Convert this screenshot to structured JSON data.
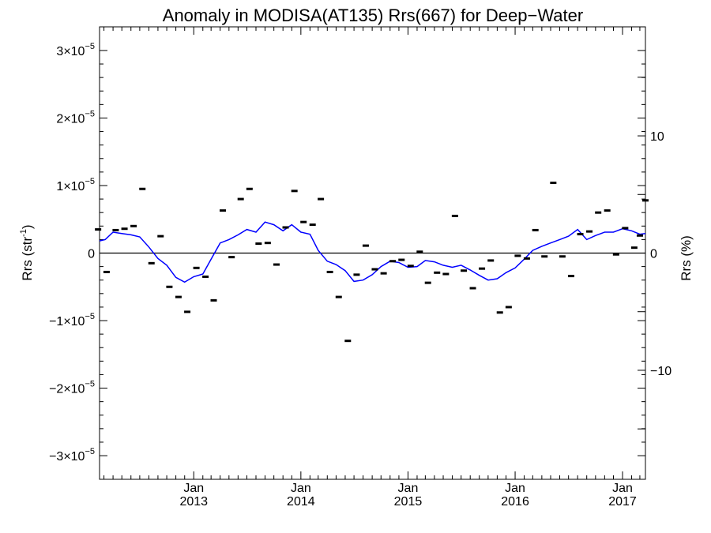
{
  "chart_data": {
    "type": "scatter",
    "title": "Anomaly in MODISA(AT135) Rrs(667) for Deep−Water",
    "ylabel_left": {
      "base": "Rrs (str",
      "sup": "-1",
      "close": ")"
    },
    "ylabel_right": "Rrs (%)",
    "x_range": [
      "2012-02-15",
      "2017-03-20"
    ],
    "y_range_left": [
      -3.35e-05,
      3.35e-05
    ],
    "y_range_right": [
      -19.3,
      19.3
    ],
    "left_ticks": [
      {
        "value": 3e-05,
        "mant": "3",
        "times": "×10",
        "exp": "−5"
      },
      {
        "value": 2e-05,
        "mant": "2",
        "times": "×10",
        "exp": "−5"
      },
      {
        "value": 1e-05,
        "mant": "1",
        "times": "×10",
        "exp": "−5"
      },
      {
        "value": 0,
        "mant": "0",
        "times": "",
        "exp": ""
      },
      {
        "value": -1e-05,
        "mant": "−1",
        "times": "×10",
        "exp": "−5"
      },
      {
        "value": -2e-05,
        "mant": "−2",
        "times": "×10",
        "exp": "−5"
      },
      {
        "value": -3e-05,
        "mant": "−3",
        "times": "×10",
        "exp": "−5"
      }
    ],
    "right_ticks": [
      {
        "value": 10,
        "label": "10"
      },
      {
        "value": 0,
        "label": "0"
      },
      {
        "value": -10,
        "label": "−10"
      }
    ],
    "x_ticks": [
      {
        "date": "2013-01-01",
        "month": "Jan",
        "year": "2013"
      },
      {
        "date": "2014-01-01",
        "month": "Jan",
        "year": "2014"
      },
      {
        "date": "2015-01-01",
        "month": "Jan",
        "year": "2015"
      },
      {
        "date": "2016-01-01",
        "month": "Jan",
        "year": "2016"
      },
      {
        "date": "2017-01-01",
        "month": "Jan",
        "year": "2017"
      }
    ],
    "zero_line": 0,
    "series": [
      {
        "kind": "points",
        "color": "#000000",
        "points": [
          {
            "x": "2012-02-10",
            "y": 3.5e-06
          },
          {
            "x": "2012-03-10",
            "y": -2.8e-06
          },
          {
            "x": "2012-04-10",
            "y": 3.4e-06
          },
          {
            "x": "2012-05-10",
            "y": 3.6e-06
          },
          {
            "x": "2012-06-10",
            "y": 4e-06
          },
          {
            "x": "2012-07-10",
            "y": 9.5e-06
          },
          {
            "x": "2012-08-10",
            "y": -1.5e-06
          },
          {
            "x": "2012-09-10",
            "y": 2.5e-06
          },
          {
            "x": "2012-10-10",
            "y": -5e-06
          },
          {
            "x": "2012-11-10",
            "y": -6.5e-06
          },
          {
            "x": "2012-12-10",
            "y": -8.7e-06
          },
          {
            "x": "2013-01-10",
            "y": -2.2e-06
          },
          {
            "x": "2013-02-10",
            "y": -3.5e-06
          },
          {
            "x": "2013-03-10",
            "y": -7e-06
          },
          {
            "x": "2013-04-10",
            "y": 6.3e-06
          },
          {
            "x": "2013-05-10",
            "y": -6e-07
          },
          {
            "x": "2013-06-10",
            "y": 8e-06
          },
          {
            "x": "2013-07-10",
            "y": 9.5e-06
          },
          {
            "x": "2013-08-10",
            "y": 1.4e-06
          },
          {
            "x": "2013-09-10",
            "y": 1.5e-06
          },
          {
            "x": "2013-10-10",
            "y": -1.7e-06
          },
          {
            "x": "2013-11-10",
            "y": 3.8e-06
          },
          {
            "x": "2013-12-10",
            "y": 9.2e-06
          },
          {
            "x": "2014-01-10",
            "y": 4.6e-06
          },
          {
            "x": "2014-02-10",
            "y": 4.2e-06
          },
          {
            "x": "2014-03-10",
            "y": 8e-06
          },
          {
            "x": "2014-04-10",
            "y": -2.8e-06
          },
          {
            "x": "2014-05-10",
            "y": -6.5e-06
          },
          {
            "x": "2014-06-10",
            "y": -1.3e-05
          },
          {
            "x": "2014-07-10",
            "y": -3.2e-06
          },
          {
            "x": "2014-08-10",
            "y": 1.1e-06
          },
          {
            "x": "2014-09-10",
            "y": -2.4e-06
          },
          {
            "x": "2014-10-10",
            "y": -3e-06
          },
          {
            "x": "2014-11-10",
            "y": -1.2e-06
          },
          {
            "x": "2014-12-10",
            "y": -1e-06
          },
          {
            "x": "2015-01-10",
            "y": -1.9e-06
          },
          {
            "x": "2015-02-10",
            "y": 2e-07
          },
          {
            "x": "2015-03-10",
            "y": -4.4e-06
          },
          {
            "x": "2015-04-10",
            "y": -2.9e-06
          },
          {
            "x": "2015-05-10",
            "y": -3.1e-06
          },
          {
            "x": "2015-06-10",
            "y": 5.5e-06
          },
          {
            "x": "2015-07-10",
            "y": -2.6e-06
          },
          {
            "x": "2015-08-10",
            "y": -5.2e-06
          },
          {
            "x": "2015-09-10",
            "y": -2.3e-06
          },
          {
            "x": "2015-10-10",
            "y": -1.1e-06
          },
          {
            "x": "2015-11-10",
            "y": -8.8e-06
          },
          {
            "x": "2015-12-10",
            "y": -8e-06
          },
          {
            "x": "2016-01-10",
            "y": -4e-07
          },
          {
            "x": "2016-02-10",
            "y": -8e-07
          },
          {
            "x": "2016-03-10",
            "y": 3.4e-06
          },
          {
            "x": "2016-04-10",
            "y": -5e-07
          },
          {
            "x": "2016-05-10",
            "y": 1.04e-05
          },
          {
            "x": "2016-06-10",
            "y": -5e-07
          },
          {
            "x": "2016-07-10",
            "y": -3.4e-06
          },
          {
            "x": "2016-08-10",
            "y": 2.8e-06
          },
          {
            "x": "2016-09-10",
            "y": 3.2e-06
          },
          {
            "x": "2016-10-10",
            "y": 6e-06
          },
          {
            "x": "2016-11-10",
            "y": 6.3e-06
          },
          {
            "x": "2016-12-10",
            "y": -2e-07
          },
          {
            "x": "2017-01-10",
            "y": 3.7e-06
          },
          {
            "x": "2017-02-10",
            "y": 8e-07
          },
          {
            "x": "2017-03-01",
            "y": 2.6e-06
          },
          {
            "x": "2017-03-20",
            "y": 7.8e-06
          }
        ]
      },
      {
        "kind": "line",
        "color": "#0000ff",
        "points": [
          {
            "x": "2012-02-15",
            "y": 1.8e-06
          },
          {
            "x": "2012-03-05",
            "y": 2e-06
          },
          {
            "x": "2012-04-01",
            "y": 3.1e-06
          },
          {
            "x": "2012-05-01",
            "y": 2.9e-06
          },
          {
            "x": "2012-06-01",
            "y": 2.7e-06
          },
          {
            "x": "2012-07-01",
            "y": 2.4e-06
          },
          {
            "x": "2012-08-01",
            "y": 9e-07
          },
          {
            "x": "2012-09-01",
            "y": -8e-07
          },
          {
            "x": "2012-10-01",
            "y": -1.8e-06
          },
          {
            "x": "2012-11-01",
            "y": -3.6e-06
          },
          {
            "x": "2012-12-01",
            "y": -4.3e-06
          },
          {
            "x": "2013-01-01",
            "y": -3.5e-06
          },
          {
            "x": "2013-02-01",
            "y": -3.1e-06
          },
          {
            "x": "2013-03-01",
            "y": -9e-07
          },
          {
            "x": "2013-04-01",
            "y": 1.5e-06
          },
          {
            "x": "2013-05-01",
            "y": 2e-06
          },
          {
            "x": "2013-06-01",
            "y": 2.7e-06
          },
          {
            "x": "2013-07-01",
            "y": 3.5e-06
          },
          {
            "x": "2013-08-01",
            "y": 3.1e-06
          },
          {
            "x": "2013-09-01",
            "y": 4.6e-06
          },
          {
            "x": "2013-10-01",
            "y": 4.2e-06
          },
          {
            "x": "2013-11-01",
            "y": 3.3e-06
          },
          {
            "x": "2013-12-01",
            "y": 4.2e-06
          },
          {
            "x": "2014-01-01",
            "y": 3.1e-06
          },
          {
            "x": "2014-02-01",
            "y": 2.8e-06
          },
          {
            "x": "2014-03-01",
            "y": 4e-07
          },
          {
            "x": "2014-04-01",
            "y": -1.2e-06
          },
          {
            "x": "2014-05-01",
            "y": -1.7e-06
          },
          {
            "x": "2014-06-01",
            "y": -2.6e-06
          },
          {
            "x": "2014-07-01",
            "y": -4.2e-06
          },
          {
            "x": "2014-08-01",
            "y": -4e-06
          },
          {
            "x": "2014-09-01",
            "y": -3.2e-06
          },
          {
            "x": "2014-10-01",
            "y": -2e-06
          },
          {
            "x": "2014-11-01",
            "y": -1.2e-06
          },
          {
            "x": "2014-12-01",
            "y": -1.4e-06
          },
          {
            "x": "2015-01-01",
            "y": -2.1e-06
          },
          {
            "x": "2015-02-01",
            "y": -2e-06
          },
          {
            "x": "2015-03-01",
            "y": -1.1e-06
          },
          {
            "x": "2015-04-01",
            "y": -1.3e-06
          },
          {
            "x": "2015-05-01",
            "y": -1.8e-06
          },
          {
            "x": "2015-06-01",
            "y": -2.1e-06
          },
          {
            "x": "2015-07-01",
            "y": -1.8e-06
          },
          {
            "x": "2015-08-01",
            "y": -2.5e-06
          },
          {
            "x": "2015-09-01",
            "y": -3.3e-06
          },
          {
            "x": "2015-10-01",
            "y": -4e-06
          },
          {
            "x": "2015-11-01",
            "y": -3.8e-06
          },
          {
            "x": "2015-12-01",
            "y": -2.9e-06
          },
          {
            "x": "2016-01-01",
            "y": -2.2e-06
          },
          {
            "x": "2016-02-01",
            "y": -9e-07
          },
          {
            "x": "2016-03-01",
            "y": 4e-07
          },
          {
            "x": "2016-04-01",
            "y": 1e-06
          },
          {
            "x": "2016-05-01",
            "y": 1.5e-06
          },
          {
            "x": "2016-06-01",
            "y": 2e-06
          },
          {
            "x": "2016-07-01",
            "y": 2.5e-06
          },
          {
            "x": "2016-08-01",
            "y": 3.5e-06
          },
          {
            "x": "2016-09-01",
            "y": 2e-06
          },
          {
            "x": "2016-10-01",
            "y": 2.6e-06
          },
          {
            "x": "2016-11-01",
            "y": 3.1e-06
          },
          {
            "x": "2016-12-01",
            "y": 3.1e-06
          },
          {
            "x": "2017-01-01",
            "y": 3.6e-06
          },
          {
            "x": "2017-02-01",
            "y": 3.3e-06
          },
          {
            "x": "2017-03-01",
            "y": 2.8e-06
          },
          {
            "x": "2017-03-20",
            "y": 2.9e-06
          }
        ]
      }
    ]
  }
}
